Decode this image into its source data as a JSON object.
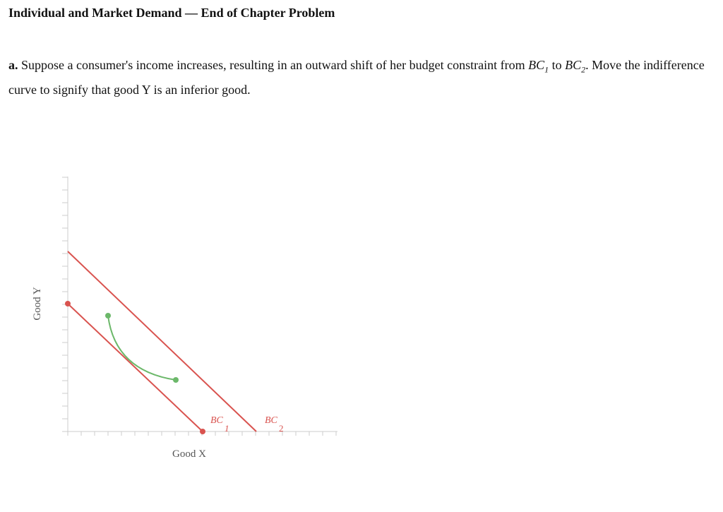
{
  "header": {
    "title": "Individual and Market Demand — End of Chapter Problem"
  },
  "question": {
    "label": "a.",
    "text_before": "Suppose a consumer's income increases, resulting in an outward shift of her budget constraint from ",
    "bc1_name": "BC",
    "bc1_sub": "1",
    "middle": " to ",
    "bc2_name": "BC",
    "bc2_sub": "2",
    "text_after": ". Move the indifference curve to signify that good Y is an inferior good."
  },
  "graph": {
    "y_axis_label": "Good Y",
    "x_axis_label": "Good X",
    "lines": [
      {
        "label": "BC",
        "subscript": "1"
      },
      {
        "label": "BC",
        "subscript": "2"
      }
    ]
  }
}
